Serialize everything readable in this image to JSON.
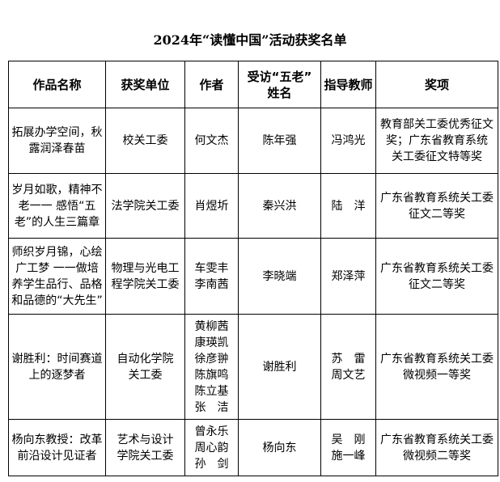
{
  "title": "2024年“读懂中国”活动获奖名单",
  "headers": [
    "作品名称",
    "获奖单位",
    "作者",
    "受访“五老”\n姓名",
    "指导教师",
    "奖项"
  ],
  "rows": [
    [
      "拓展办学空间，秋\n露润泽春苗",
      "校关工委",
      "何文杰",
      "陈年强",
      "冯鸿光",
      "教育部关工委优秀征文\n奖；广东省教育系统\n关工委征文特等奖"
    ],
    [
      "岁月如歌，精神不\n老一一 感悟“五\n老”的人生三篇章",
      "法学院关工委",
      "肖煜圻",
      "秦兴洪",
      "陆　洋",
      "广东省教育系统关工委\n征文二等奖"
    ],
    [
      "师织岁月锦，心绘\n广工梦 一一做培\n养学生品行、品格\n和品德的“大先生”",
      "物理与光电工\n程学院关工委",
      "车雯丰\n李南茜",
      "李晓端",
      "郑泽萍",
      "广东省教育系统关工委\n征文二等奖"
    ],
    [
      "谢胜利：时间赛道\n上的逐梦者",
      "自动化学院\n关工委",
      "黄柳茜\n康瑛凯\n徐彦翀\n陈旗鸣\n陈立基\n张　洁",
      "谢胜利",
      "苏　雷\n周文艺",
      "广东省教育系统关工委\n微视频一等奖"
    ],
    [
      "杨向东教授：改革\n前沿设计见证者",
      "艺术与设计\n学院关工委",
      "曾永乐\n周心韵\n孙　剑",
      "杨向东",
      "吴　刚\n施一峰",
      "广东省教育系统关工委\n微视频二等奖"
    ]
  ]
}
